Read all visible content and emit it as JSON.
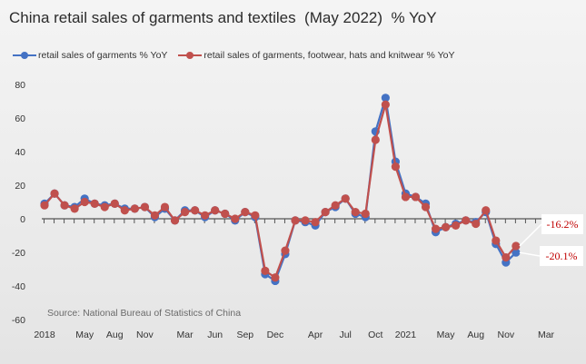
{
  "title": "China retail sales of garments and textiles  (May 2022)  % YoY",
  "source_note": "Source: National Bureau of Statistics of China",
  "colors": {
    "series1": "#4472c4",
    "series2": "#c0504d",
    "callout_text": "#c00000"
  },
  "chart_data": {
    "type": "line",
    "title": "China retail sales of garments and textiles  (May 2022)  % YoY",
    "ylim": [
      -60,
      80
    ],
    "yticks": [
      80,
      60,
      40,
      20,
      0,
      -20,
      -40,
      -60
    ],
    "grid": false,
    "legend_position": "top-left",
    "x": [
      "2018-01",
      "2018-02",
      "2018-03",
      "2018-04",
      "2018-05",
      "2018-06",
      "2018-07",
      "2018-08",
      "2018-09",
      "2018-10",
      "2018-11",
      "2018-12",
      "2019-01",
      "2019-02",
      "2019-03",
      "2019-04",
      "2019-05",
      "2019-06",
      "2019-07",
      "2019-08",
      "2019-09",
      "2019-10",
      "2019-11",
      "2019-12",
      "2020-01",
      "2020-02",
      "2020-03",
      "2020-04",
      "2020-05",
      "2020-06",
      "2020-07",
      "2020-08",
      "2020-09",
      "2020-10",
      "2020-11",
      "2020-12",
      "2021-01",
      "2021-02",
      "2021-03",
      "2021-04",
      "2021-05",
      "2021-06",
      "2021-07",
      "2021-08",
      "2021-09",
      "2021-10",
      "2021-11",
      "2021-12",
      "2022-01",
      "2022-02",
      "2022-03",
      "2022-04",
      "2022-05"
    ],
    "x_tick_labels": [
      {
        "index": 0,
        "label": "2018"
      },
      {
        "index": 4,
        "label": "May"
      },
      {
        "index": 7,
        "label": "Aug"
      },
      {
        "index": 10,
        "label": "Nov"
      },
      {
        "index": 14,
        "label": "Mar"
      },
      {
        "index": 17,
        "label": "Jun"
      },
      {
        "index": 20,
        "label": "Sep"
      },
      {
        "index": 23,
        "label": "Dec"
      },
      {
        "index": 27,
        "label": "Apr"
      },
      {
        "index": 30,
        "label": "Jul"
      },
      {
        "index": 33,
        "label": "Oct"
      },
      {
        "index": 36,
        "label": "2021"
      },
      {
        "index": 40,
        "label": "May"
      },
      {
        "index": 43,
        "label": "Aug"
      },
      {
        "index": 46,
        "label": "Nov"
      },
      {
        "index": 50,
        "label": "Mar"
      }
    ],
    "series": [
      {
        "name": "retail sales of garments % YoY",
        "color": "#4472c4",
        "values": [
          9,
          15,
          8,
          7,
          12,
          9,
          8,
          9,
          6,
          6,
          7,
          1,
          6,
          -1,
          5,
          5,
          1,
          5,
          3,
          -1,
          4,
          1,
          -33,
          -37,
          -21,
          -1,
          -2,
          -4,
          4,
          7,
          12,
          3,
          1,
          52,
          72,
          34,
          15,
          13,
          9,
          -8,
          -5,
          -3,
          -1,
          -2,
          4,
          -15,
          -26,
          -20.1,
          null,
          null,
          null,
          null,
          null
        ]
      },
      {
        "name": "retail sales of garments, footwear, hats and knitwear % YoY",
        "color": "#c0504d",
        "values": [
          8,
          15,
          8,
          6,
          10,
          9,
          7,
          9,
          5,
          6,
          7,
          2,
          7,
          -1,
          4,
          5,
          2,
          5,
          3,
          0,
          4,
          2,
          -31,
          -35,
          -19,
          -1,
          -1,
          -2,
          4,
          8,
          12,
          4,
          3,
          47,
          68,
          31,
          13,
          13,
          7,
          -6,
          -5,
          -4,
          -1,
          -3,
          5,
          -13,
          -23,
          -16.2,
          null,
          null,
          null,
          null,
          null
        ]
      }
    ],
    "annotations": [
      {
        "label": "-16.2%",
        "series": 1
      },
      {
        "label": "-20.1%",
        "series": 0
      }
    ]
  }
}
